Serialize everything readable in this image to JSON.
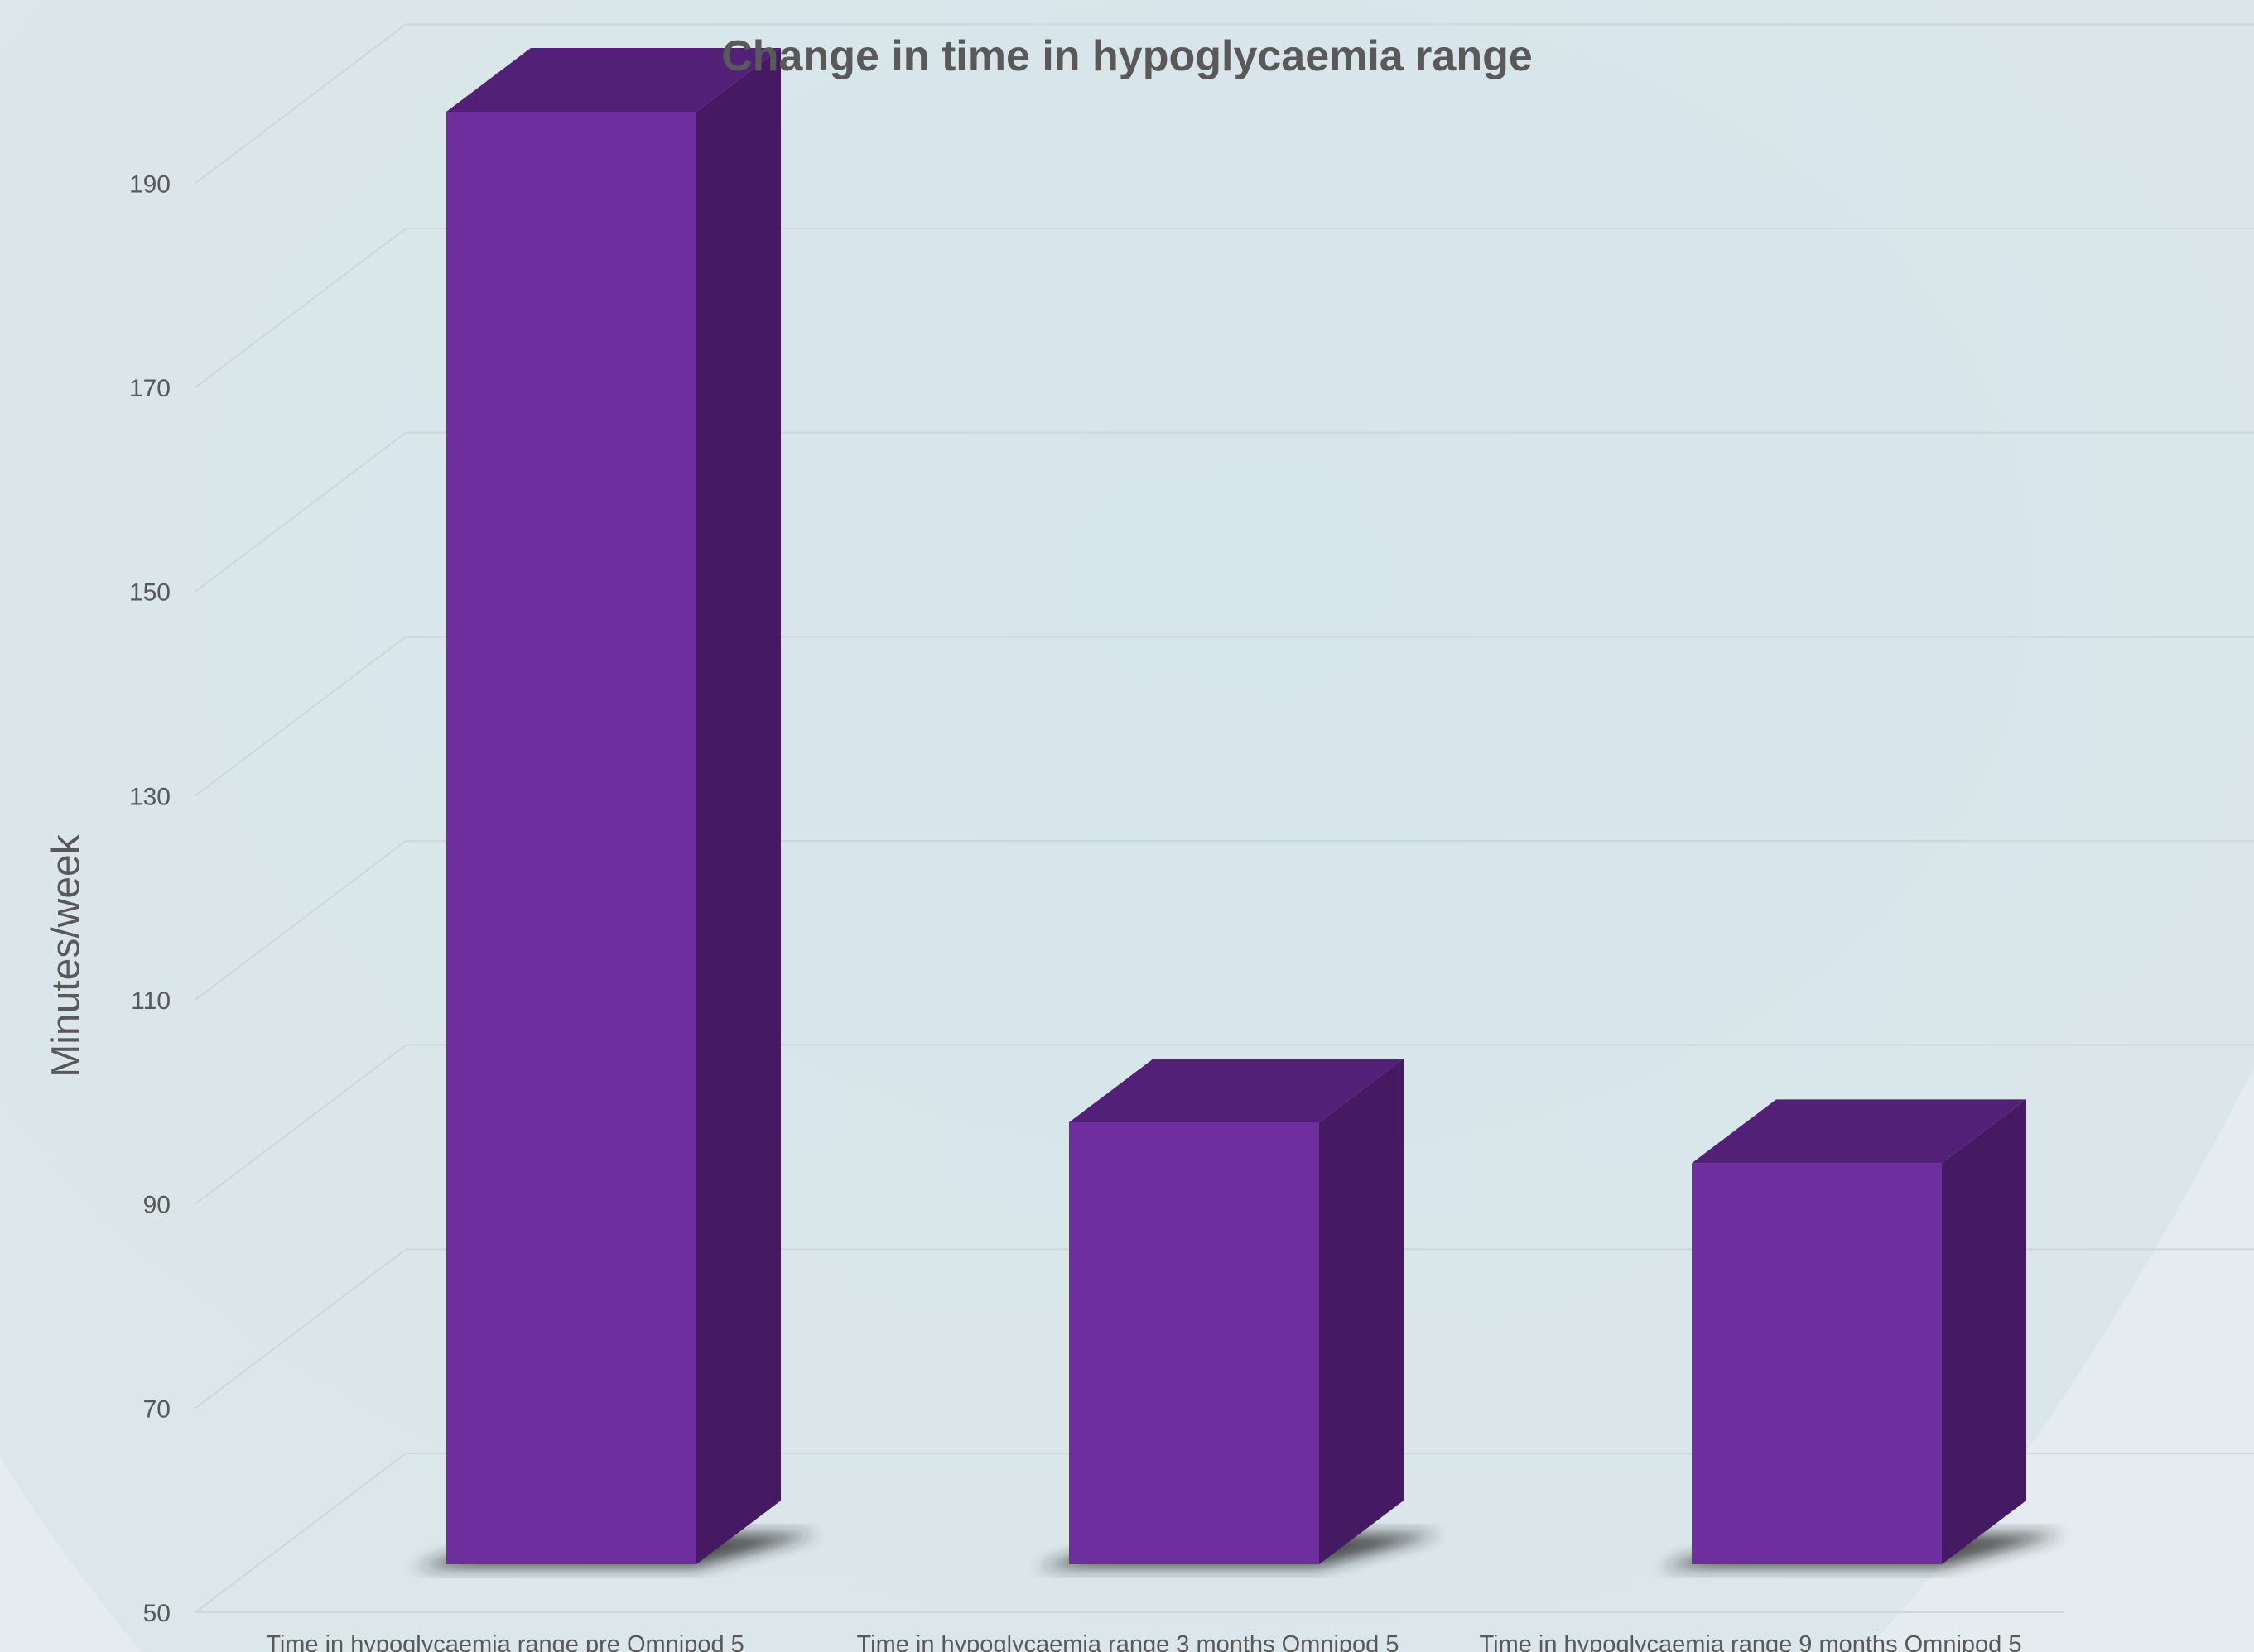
{
  "chart_data": {
    "type": "bar",
    "title": "Change in time in hypoglycaemia range",
    "xlabel": "",
    "ylabel": "Minutes/week",
    "categories": [
      "Time in hypoglycaemia range pre Omnipod 5",
      "Time in hypoglycaemia range 3 months Omnipod 5",
      "Time in hypoglycaemia range 9 months Omnipod 5"
    ],
    "values": [
      197,
      98,
      94
    ],
    "ylim": [
      50,
      200
    ],
    "yticks": [
      50,
      70,
      90,
      110,
      130,
      150,
      170,
      190
    ],
    "grid": true,
    "style": "3d-column",
    "colors": {
      "bar_front": "#6f2e9e",
      "bar_top": "#532077",
      "bar_side": "#461a63",
      "grid": "#cfd7da",
      "text": "#595959"
    }
  }
}
